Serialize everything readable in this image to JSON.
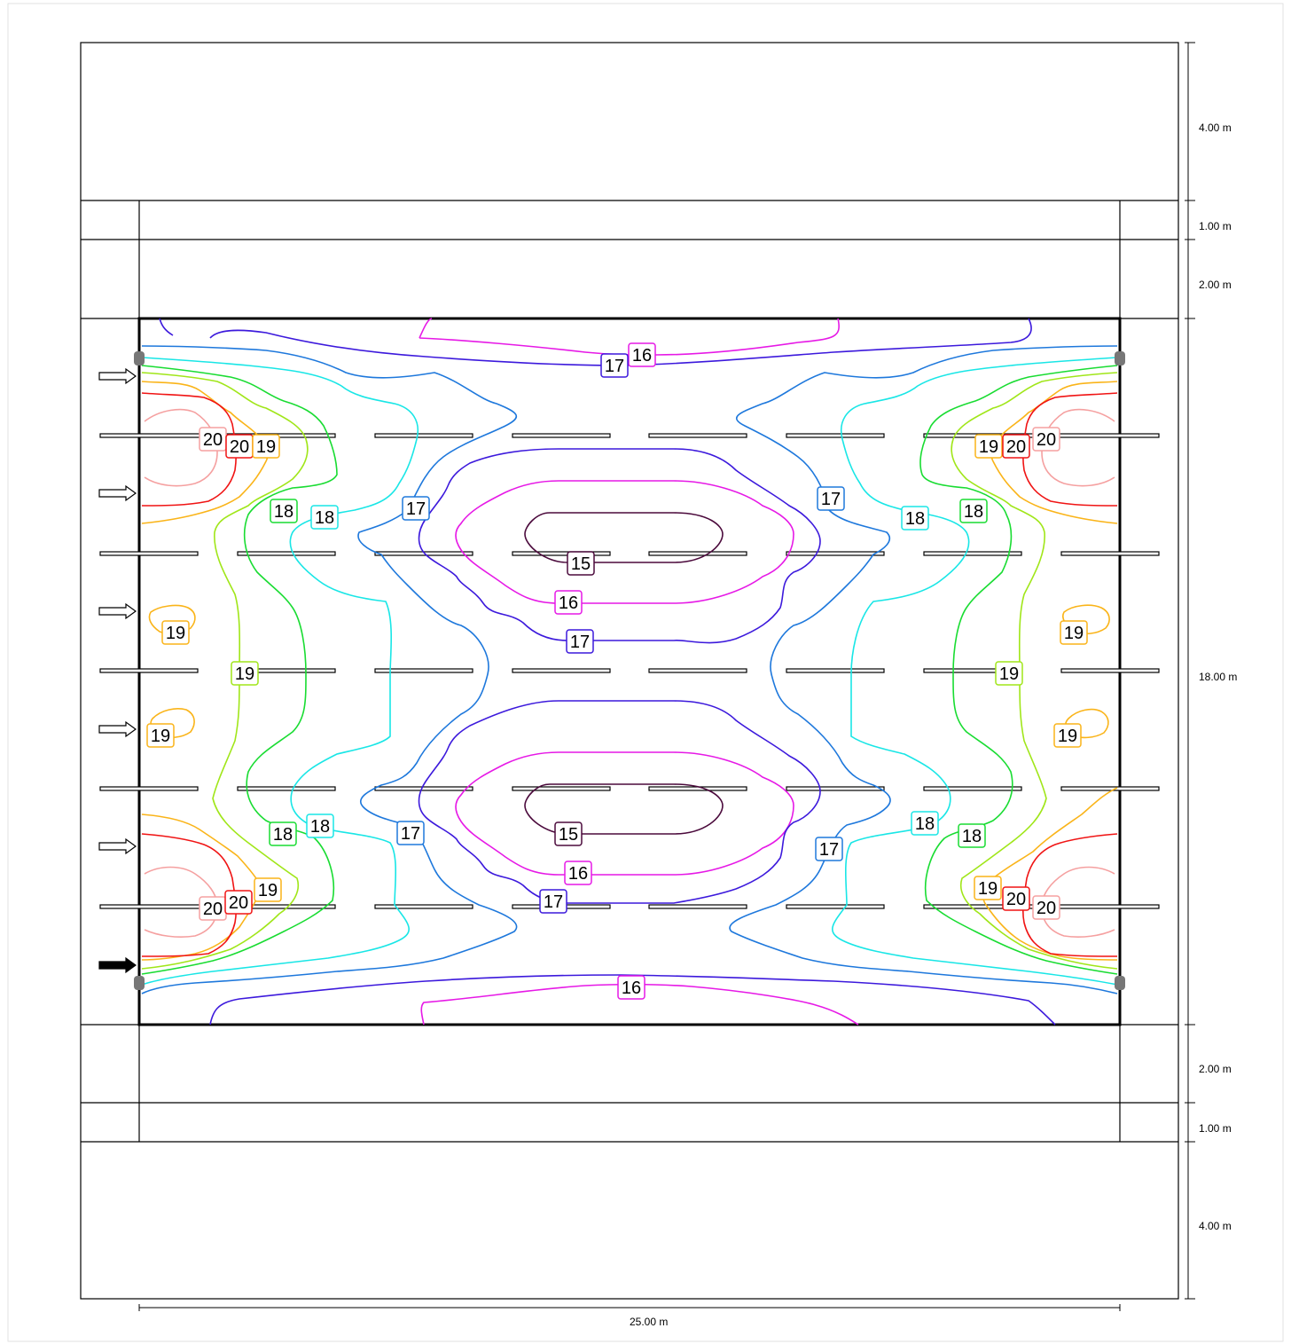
{
  "dimensions": {
    "vertical": [
      {
        "label": "4.00 m"
      },
      {
        "label": "1.00 m"
      },
      {
        "label": "2.00 m"
      },
      {
        "label": "18.00 m"
      },
      {
        "label": "2.00 m"
      },
      {
        "label": "1.00 m"
      },
      {
        "label": "4.00 m"
      }
    ],
    "horizontal": {
      "label": "25.00 m"
    }
  },
  "isolines": {
    "15": {
      "color": "#4b0a3c"
    },
    "16": {
      "color": "#e619e6"
    },
    "17": {
      "color": "#3c19dc"
    },
    "17b": {
      "color": "#1e78dc"
    },
    "18": {
      "color": "#19e6e6"
    },
    "18b": {
      "color": "#19dc32"
    },
    "19": {
      "color": "#a0e619"
    },
    "19b": {
      "color": "#fab419"
    },
    "20": {
      "color": "#f01414"
    },
    "20b": {
      "color": "#f5a0a0"
    }
  },
  "labels": [
    {
      "text": "16",
      "key": "16"
    },
    {
      "text": "17",
      "key": "17"
    },
    {
      "text": "20",
      "key": "20b"
    },
    {
      "text": "20",
      "key": "20"
    },
    {
      "text": "19",
      "key": "19b"
    },
    {
      "text": "19",
      "key": "19b"
    },
    {
      "text": "20",
      "key": "20"
    },
    {
      "text": "20",
      "key": "20b"
    },
    {
      "text": "18",
      "key": "18b"
    },
    {
      "text": "18",
      "key": "18"
    },
    {
      "text": "17",
      "key": "17b"
    },
    {
      "text": "17",
      "key": "17b"
    },
    {
      "text": "18",
      "key": "18"
    },
    {
      "text": "18",
      "key": "18b"
    },
    {
      "text": "15",
      "key": "15"
    },
    {
      "text": "16",
      "key": "16"
    },
    {
      "text": "17",
      "key": "17"
    },
    {
      "text": "19",
      "key": "19b"
    },
    {
      "text": "19",
      "key": "19b"
    },
    {
      "text": "19",
      "key": "19"
    },
    {
      "text": "19",
      "key": "19"
    },
    {
      "text": "19",
      "key": "19b"
    },
    {
      "text": "19",
      "key": "19b"
    },
    {
      "text": "18",
      "key": "18"
    },
    {
      "text": "18",
      "key": "18b"
    },
    {
      "text": "17",
      "key": "17b"
    },
    {
      "text": "15",
      "key": "15"
    },
    {
      "text": "16",
      "key": "16"
    },
    {
      "text": "17",
      "key": "17"
    },
    {
      "text": "18",
      "key": "18"
    },
    {
      "text": "18",
      "key": "18b"
    },
    {
      "text": "17",
      "key": "17b"
    },
    {
      "text": "20",
      "key": "20b"
    },
    {
      "text": "20",
      "key": "20"
    },
    {
      "text": "19",
      "key": "19b"
    },
    {
      "text": "19",
      "key": "19b"
    },
    {
      "text": "20",
      "key": "20"
    },
    {
      "text": "20",
      "key": "20b"
    },
    {
      "text": "16",
      "key": "16"
    }
  ]
}
